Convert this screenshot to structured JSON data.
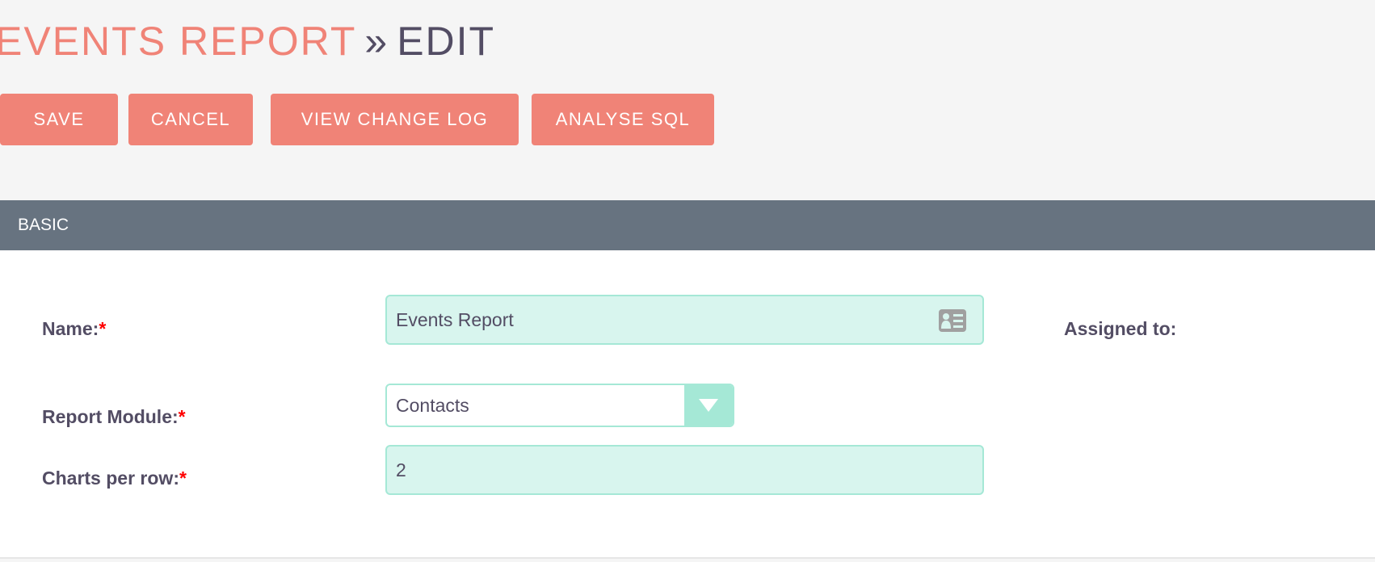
{
  "header": {
    "module": "EVENTS REPORT",
    "separator": "»",
    "action": "EDIT"
  },
  "buttons": {
    "save": "SAVE",
    "cancel": "CANCEL",
    "view_change_log": "VIEW CHANGE LOG",
    "analyse_sql": "ANALYSE SQL"
  },
  "section": {
    "title": "BASIC"
  },
  "fields": {
    "name": {
      "label": "Name:",
      "required": "*",
      "value": "Events Report",
      "icon": "id-card-icon"
    },
    "assigned_to": {
      "label": "Assigned to:"
    },
    "report_module": {
      "label": "Report Module:",
      "required": "*",
      "value": "Contacts"
    },
    "charts_per_row": {
      "label": "Charts per row:",
      "required": "*",
      "value": "2"
    }
  },
  "colors": {
    "accent": "#f08377",
    "section_bar": "#677380",
    "input_bg": "#d8f5ee",
    "input_border": "#a5e8d6",
    "text": "#534d64"
  }
}
